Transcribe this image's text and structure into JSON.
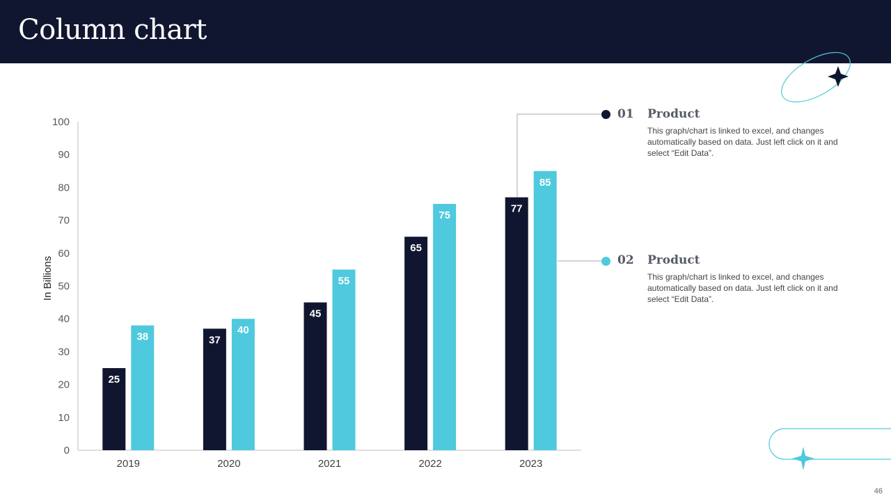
{
  "slide": {
    "title": "Column chart",
    "page_number": "46"
  },
  "legend": [
    {
      "number": "01",
      "title": "Product",
      "description": "This graph/chart is linked to excel, and changes automatically based on data. Just left click on it and select “Edit Data”.",
      "color": "#111630"
    },
    {
      "number": "02",
      "title": "Product",
      "description": "This graph/chart is linked to excel, and changes automatically based on data. Just left click on it and select “Edit Data”.",
      "color": "#4fc9dd"
    }
  ],
  "chart_data": {
    "type": "bar",
    "title": "",
    "xlabel": "",
    "ylabel": "In Billions",
    "ylim": [
      0,
      100
    ],
    "yticks": [
      0,
      10,
      20,
      30,
      40,
      50,
      60,
      70,
      80,
      90,
      100
    ],
    "categories": [
      "2019",
      "2020",
      "2021",
      "2022",
      "2023"
    ],
    "series": [
      {
        "name": "Product 01",
        "values": [
          25,
          37,
          45,
          65,
          77
        ],
        "color": "#111630"
      },
      {
        "name": "Product 02",
        "values": [
          38,
          40,
          55,
          75,
          85
        ],
        "color": "#4fc9dd"
      }
    ],
    "grid": false,
    "data_labels": true
  }
}
